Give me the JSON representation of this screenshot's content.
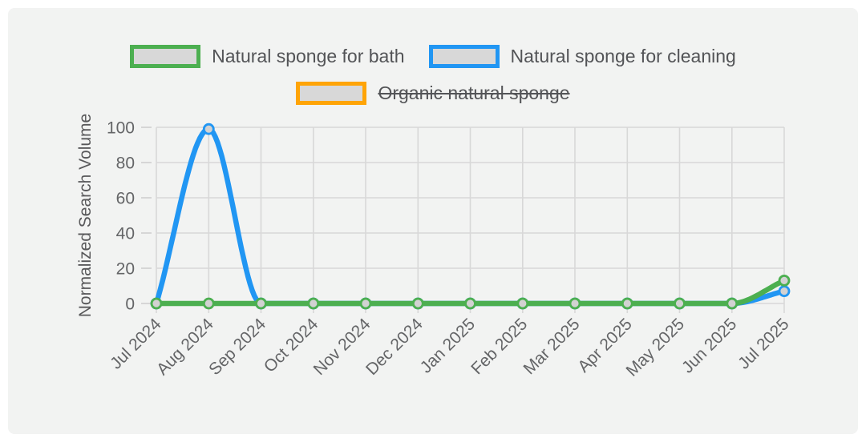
{
  "styles": {
    "page_background": "#ffffff",
    "panel_background": "#f2f3f2",
    "grid_color": "#d8d8d8",
    "tick_color": "#cfcfcf",
    "tick_label_color": "#646567",
    "axis_title_color": "#58585a",
    "legend_text_color": "#535457",
    "legend_box_fill": "#d8d8d8",
    "point_fill": "#d2d2d2"
  },
  "chart_data": {
    "type": "line",
    "title": "",
    "xlabel": "",
    "ylabel": "Normalized Search Volume",
    "categories": [
      "Jul 2024",
      "Aug 2024",
      "Sep 2024",
      "Oct 2024",
      "Nov 2024",
      "Dec 2024",
      "Jan 2025",
      "Feb 2025",
      "Mar 2025",
      "Apr 2025",
      "May 2025",
      "Jun 2025",
      "Jul 2025"
    ],
    "series": [
      {
        "name": "Natural sponge for bath",
        "color": "#4caf50",
        "hidden": false,
        "values": [
          0,
          0,
          0,
          0,
          0,
          0,
          0,
          0,
          0,
          0,
          0,
          0,
          13
        ]
      },
      {
        "name": "Natural sponge for cleaning",
        "color": "#2196f3",
        "hidden": false,
        "values": [
          0,
          99,
          0,
          0,
          0,
          0,
          0,
          0,
          0,
          0,
          0,
          0,
          7
        ]
      },
      {
        "name": "Organic natural sponge",
        "color": "#ffa406",
        "hidden": true,
        "values": null
      }
    ],
    "ylim": [
      0,
      100
    ],
    "yticks": [
      0,
      20,
      40,
      60,
      80,
      100
    ],
    "grid": true,
    "legend_position": "top",
    "line_shape": "smooth"
  }
}
